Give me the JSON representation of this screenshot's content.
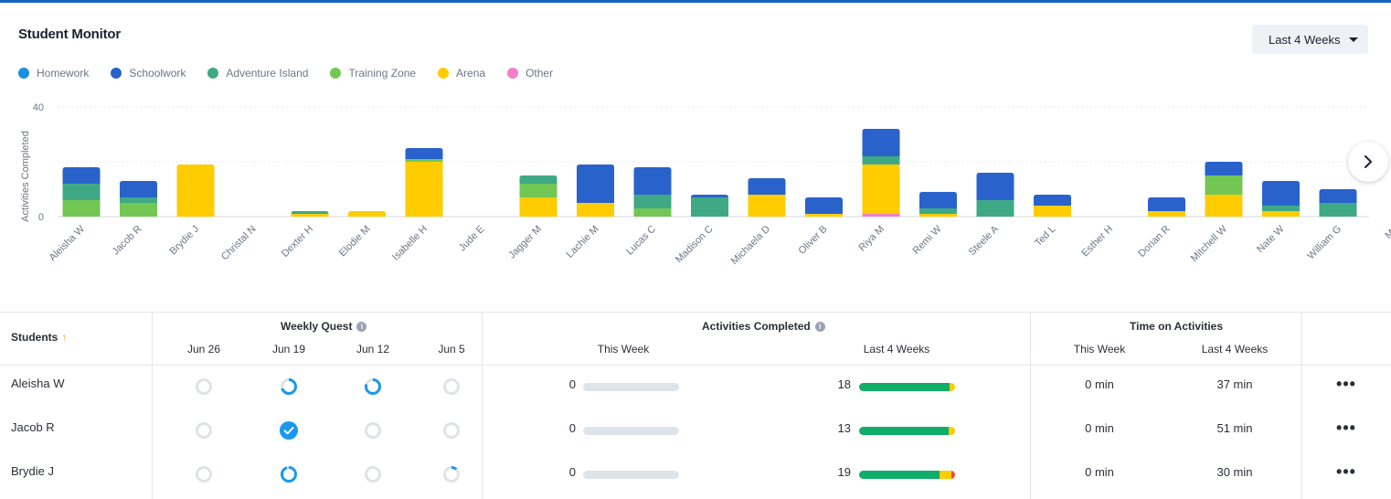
{
  "header": {
    "title": "Student Monitor",
    "range_label": "Last 4 Weeks"
  },
  "colors": {
    "homework": "#1a8fe0",
    "schoolwork": "#2a62cc",
    "adventure": "#3ea984",
    "training": "#72c754",
    "arena": "#ffcc00",
    "other": "#f27fc9",
    "track": "#dfe4ea",
    "green_bar": "#10ac6a",
    "red_bar": "#f0493e"
  },
  "legend": [
    {
      "label": "Homework",
      "color": "#1a8fe0"
    },
    {
      "label": "Schoolwork",
      "color": "#2a62cc"
    },
    {
      "label": "Adventure Island",
      "color": "#3ea984"
    },
    {
      "label": "Training Zone",
      "color": "#72c754"
    },
    {
      "label": "Arena",
      "color": "#ffcc00"
    },
    {
      "label": "Other",
      "color": "#f27fc9"
    }
  ],
  "chart_data": {
    "type": "bar",
    "stacked": true,
    "title": "",
    "xlabel": "",
    "ylabel": "Activities Completed",
    "ylim": [
      0,
      40
    ],
    "yticks": [
      0,
      40
    ],
    "categories": [
      "Aleisha W",
      "Jacob R",
      "Brydie J",
      "Christal N",
      "Dexter H",
      "Elodie M",
      "Isabelle H",
      "Jude E",
      "Jagger M",
      "Lachie M",
      "Lucas C",
      "Madison C",
      "Michaela D",
      "Oliver B",
      "Riya M",
      "Remi W",
      "Steele A",
      "Ted L",
      "Esther H",
      "Dorian R",
      "Mitchell W",
      "Nate W",
      "William G",
      "Mo"
    ],
    "series": [
      {
        "name": "Other",
        "color": "#f27fc9",
        "values": [
          0,
          0,
          0,
          0,
          0,
          0,
          0,
          0,
          0,
          0,
          0,
          0,
          0,
          0,
          1,
          0,
          0,
          0,
          0,
          0,
          0,
          0,
          0,
          0
        ]
      },
      {
        "name": "Arena",
        "color": "#ffcc00",
        "values": [
          0,
          0,
          19,
          0,
          1,
          2,
          20,
          0,
          7,
          5,
          0,
          0,
          8,
          1,
          18,
          1,
          0,
          4,
          0,
          2,
          8,
          2,
          0,
          0
        ]
      },
      {
        "name": "Training Zone",
        "color": "#72c754",
        "values": [
          6,
          5,
          0,
          0,
          0,
          0,
          1,
          0,
          5,
          0,
          3,
          0,
          0,
          0,
          0,
          0,
          0,
          0,
          0,
          0,
          7,
          0,
          0,
          0
        ]
      },
      {
        "name": "Adventure Island",
        "color": "#3ea984",
        "values": [
          6,
          2,
          0,
          0,
          1,
          0,
          0,
          0,
          3,
          0,
          5,
          7,
          0,
          0,
          3,
          2,
          6,
          0,
          0,
          0,
          0,
          2,
          5,
          0
        ]
      },
      {
        "name": "Schoolwork",
        "color": "#2a62cc",
        "values": [
          6,
          6,
          0,
          0,
          0,
          0,
          4,
          0,
          0,
          14,
          10,
          1,
          6,
          6,
          10,
          6,
          10,
          4,
          0,
          5,
          5,
          9,
          5,
          0
        ]
      },
      {
        "name": "Homework",
        "color": "#1a8fe0",
        "values": [
          0,
          0,
          0,
          0,
          0,
          0,
          0,
          0,
          0,
          0,
          0,
          0,
          0,
          0,
          0,
          0,
          0,
          0,
          0,
          0,
          0,
          0,
          0,
          0
        ]
      }
    ]
  },
  "table": {
    "students_header": "Students",
    "sort_icon": "↑",
    "weekly_quest": {
      "title": "Weekly Quest",
      "weeks": [
        "Jun 26",
        "Jun 19",
        "Jun 12",
        "Jun 5"
      ]
    },
    "activities": {
      "title": "Activities Completed",
      "this_week": "This Week",
      "last_4": "Last 4 Weeks"
    },
    "time": {
      "title": "Time on Activities",
      "this_week": "This Week",
      "last_4": "Last 4 Weeks"
    },
    "info_icon": "i",
    "more_icon": "•••",
    "rows": [
      {
        "name": "Aleisha W",
        "quest": [
          0,
          0.7,
          0.8,
          0
        ],
        "quest_done": [
          false,
          false,
          false,
          false
        ],
        "this_week": "0",
        "last_4": "18",
        "last_4_green": 0.94,
        "last_4_yellow": 0.06,
        "last_4_red": 0,
        "time_this": "0 min",
        "time_last": "37 min"
      },
      {
        "name": "Jacob R",
        "quest": [
          0,
          1,
          0,
          0
        ],
        "quest_done": [
          false,
          true,
          false,
          false
        ],
        "this_week": "0",
        "last_4": "13",
        "last_4_green": 0.93,
        "last_4_yellow": 0.07,
        "last_4_red": 0,
        "time_this": "0 min",
        "time_last": "51 min"
      },
      {
        "name": "Brydie J",
        "quest": [
          0,
          0.95,
          0,
          0.12
        ],
        "quest_done": [
          false,
          false,
          false,
          false
        ],
        "this_week": "0",
        "last_4": "19",
        "last_4_green": 0.84,
        "last_4_yellow": 0.12,
        "last_4_red": 0.04,
        "time_this": "0 min",
        "time_last": "30 min"
      }
    ]
  }
}
